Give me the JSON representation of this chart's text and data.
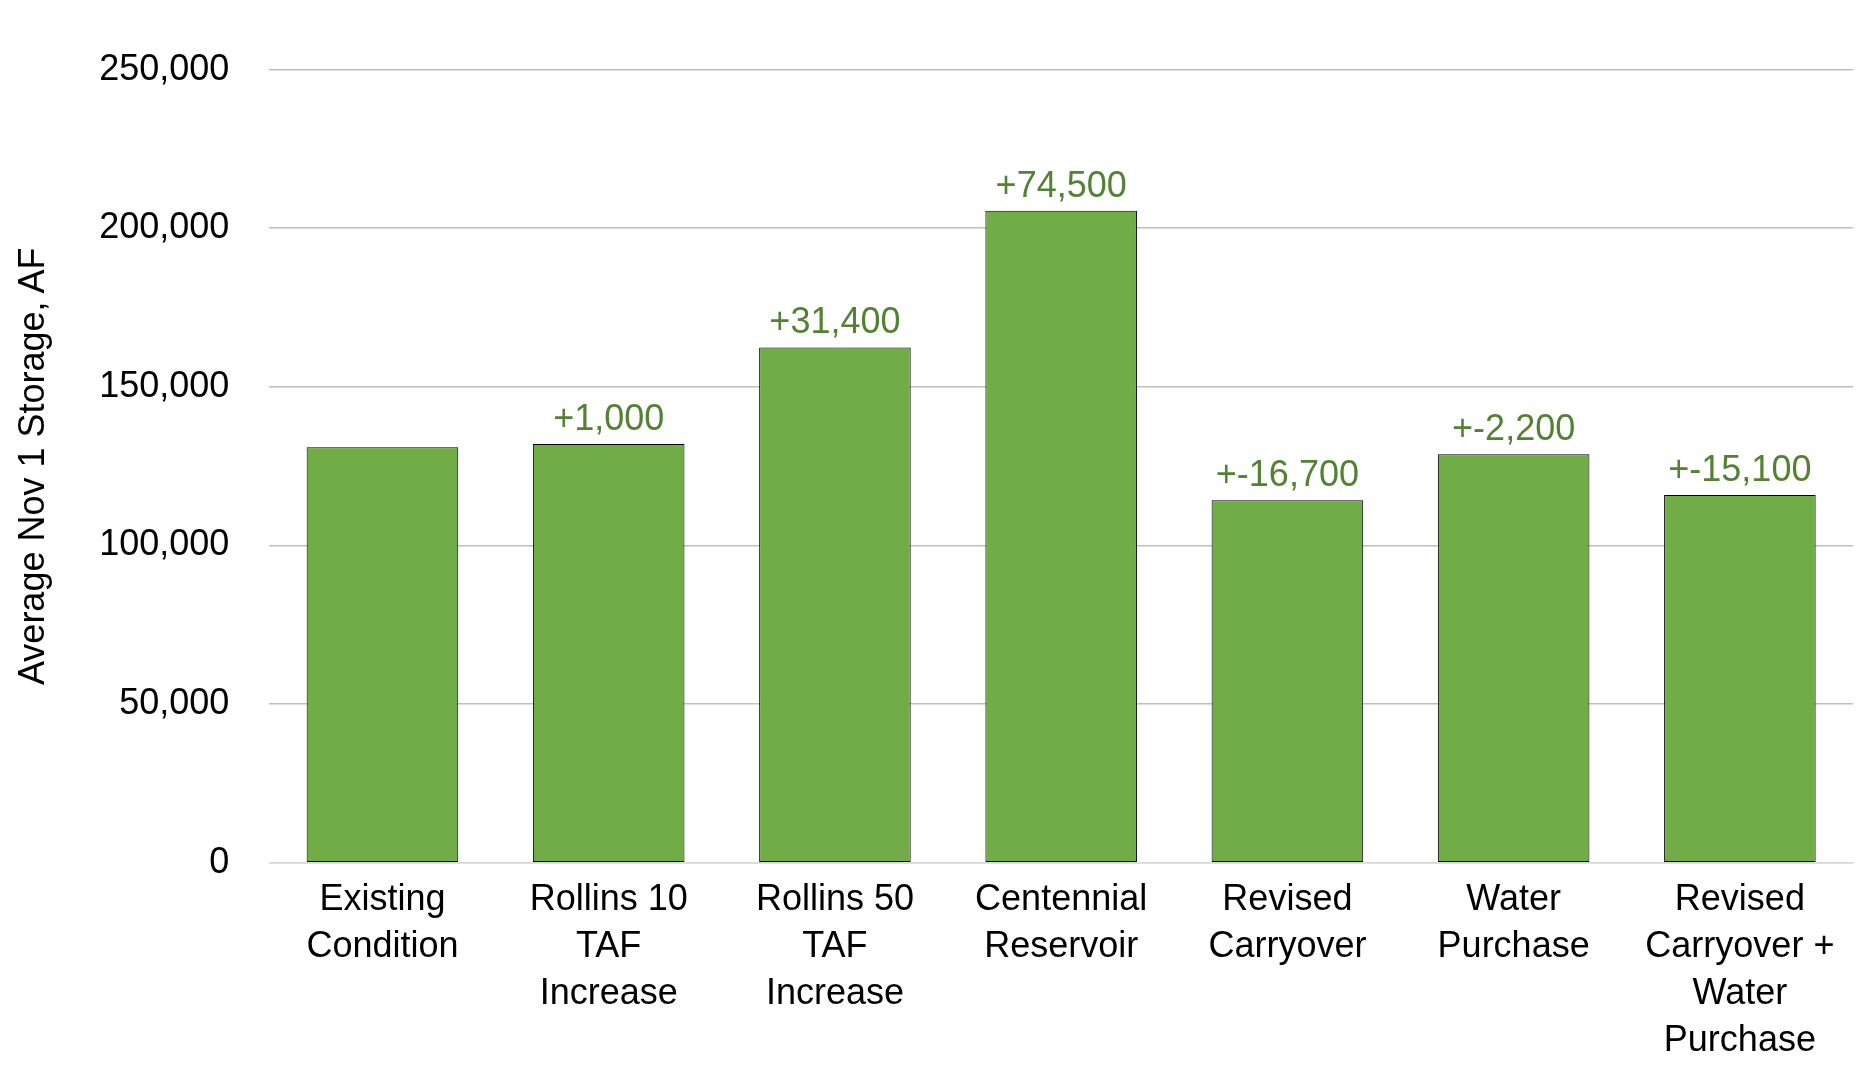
{
  "chart_data": {
    "type": "bar",
    "ylabel": "Average Nov 1 Storage, AF",
    "categories": [
      "Existing Condition",
      "Rollins 10 TAF Increase",
      "Rollins 50 TAF Increase",
      "Centennial Reservoir",
      "Revised Carryover",
      "Water Purchase",
      "Revised Carryover + Water Purchase"
    ],
    "values": [
      131000,
      132000,
      162400,
      205500,
      114300,
      128800,
      115900
    ],
    "annotations": [
      {
        "text": "+1,000",
        "x": "Rollins 10 TAF Increase",
        "y": 132000
      },
      {
        "text": "+31,400",
        "x": "Rollins 50 TAF Increase",
        "y": 162400
      },
      {
        "text": "+74,500",
        "x": "Centennial Reservoir",
        "y": 205500
      },
      {
        "text": "+-16,700",
        "x": "Revised Carryover",
        "y": 114300
      },
      {
        "text": "+-2,200",
        "x": "Water Purchase",
        "y": 128800
      },
      {
        "text": "+-15,100",
        "x": "Revised Carryover + Water Purchase",
        "y": 115900
      }
    ],
    "color": "#70ad47",
    "ylim": [
      0,
      250000
    ],
    "yticks": [
      {
        "value": 0,
        "label": "0"
      },
      {
        "value": 50000,
        "label": "50,000"
      },
      {
        "value": 100000,
        "label": "100,000"
      },
      {
        "value": 150000,
        "label": "150,000"
      },
      {
        "value": 200000,
        "label": "200,000"
      },
      {
        "value": 250000,
        "label": "250,000"
      }
    ],
    "grid": "y",
    "legend": false
  }
}
